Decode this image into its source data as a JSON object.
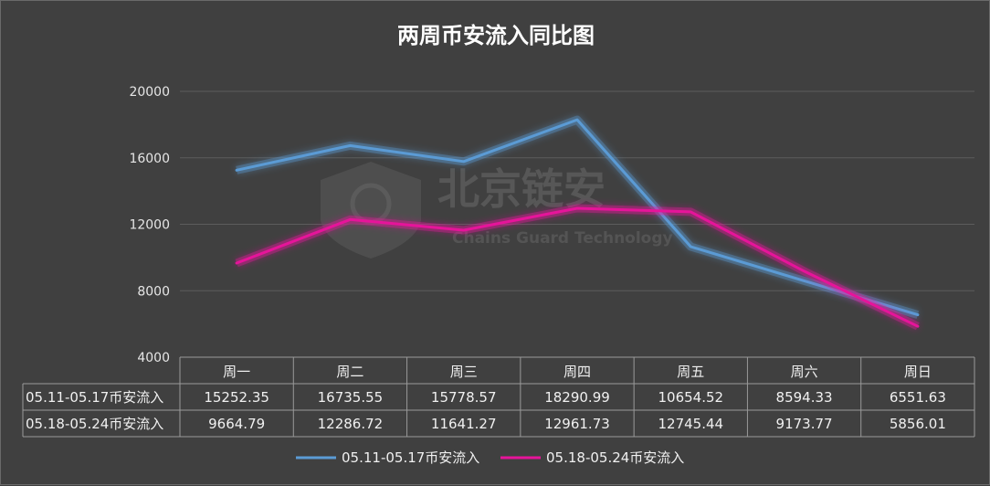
{
  "chart_data": {
    "type": "line",
    "title": "两周币安流入同比图",
    "categories": [
      "周一",
      "周二",
      "周三",
      "周四",
      "周五",
      "周六",
      "周日"
    ],
    "yticks": [
      4000,
      8000,
      12000,
      16000,
      20000
    ],
    "ylim": [
      4000,
      20000
    ],
    "grid": true,
    "legend_position": "bottom",
    "series": [
      {
        "name": "05.11-05.17币安流入",
        "color": "#5b9bd5",
        "values": [
          15252.35,
          16735.55,
          15778.57,
          18290.99,
          10654.52,
          8594.33,
          6551.63
        ],
        "labels": [
          "15252.35",
          "16735.55",
          "15778.57",
          "18290.99",
          "10654.52",
          "8594.33",
          "6551.63"
        ]
      },
      {
        "name": "05.18-05.24币安流入",
        "color": "#e6149a",
        "values": [
          9664.79,
          12286.72,
          11641.27,
          12961.73,
          12745.44,
          9173.77,
          5856.01
        ],
        "labels": [
          "9664.79",
          "12286.72",
          "11641.27",
          "12961.73",
          "12745.44",
          "9173.77",
          "5856.01"
        ]
      }
    ]
  },
  "watermark": {
    "text": "北京链安",
    "subtext": "Chains Guard Technology"
  }
}
